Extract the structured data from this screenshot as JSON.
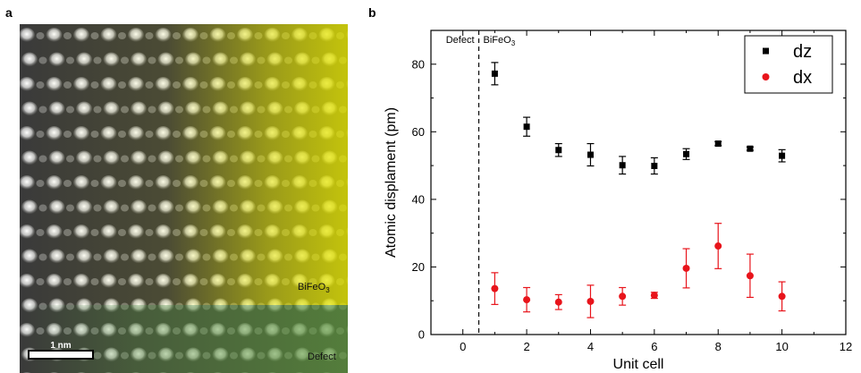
{
  "panels": {
    "a": {
      "label": "a",
      "scalebar_label": "1 nm",
      "region_bifeo3": {
        "text": "BiFeO",
        "sub": "3"
      },
      "region_defect": "Defect",
      "colors": {
        "bifeo3_overlay": "#e6e600",
        "defect_overlay": "#5f9a3c",
        "atoms": "#f2f2f2",
        "background": "#3a3a3a"
      }
    },
    "b": {
      "label": "b"
    }
  },
  "chart_data": {
    "type": "scatter",
    "xlabel": "Unit cell",
    "ylabel": "Atomic displament (pm)",
    "xlim": [
      -1,
      12
    ],
    "ylim": [
      0,
      90
    ],
    "xticks": [
      "0",
      "2",
      "4",
      "6",
      "8",
      "10",
      "12"
    ],
    "yticks": [
      "0",
      "20",
      "40",
      "60",
      "80"
    ],
    "legend_position": "top-right",
    "annotations": {
      "divider_x": 0.5,
      "left": "Defect",
      "right": {
        "text": "BiFeO",
        "sub": "3"
      }
    },
    "series": [
      {
        "name": "dz",
        "marker": "square",
        "color": "#000000",
        "x": [
          1,
          2,
          3,
          4,
          5,
          6,
          7,
          8,
          9,
          10
        ],
        "y": [
          77.2,
          61.5,
          54.6,
          53.2,
          50.1,
          49.9,
          53.4,
          56.5,
          55.0,
          52.9
        ],
        "err": [
          3.3,
          2.8,
          1.9,
          3.3,
          2.6,
          2.4,
          1.6,
          0.6,
          0.5,
          1.8
        ]
      },
      {
        "name": "dx",
        "marker": "circle",
        "color": "#e8141b",
        "x": [
          1,
          2,
          3,
          4,
          5,
          6,
          7,
          8,
          9,
          10
        ],
        "y": [
          13.6,
          10.3,
          9.6,
          9.8,
          11.3,
          11.6,
          19.6,
          26.2,
          17.4,
          11.3
        ],
        "err": [
          4.7,
          3.6,
          2.2,
          4.8,
          2.6,
          0.9,
          5.8,
          6.7,
          6.4,
          4.3
        ]
      }
    ]
  }
}
